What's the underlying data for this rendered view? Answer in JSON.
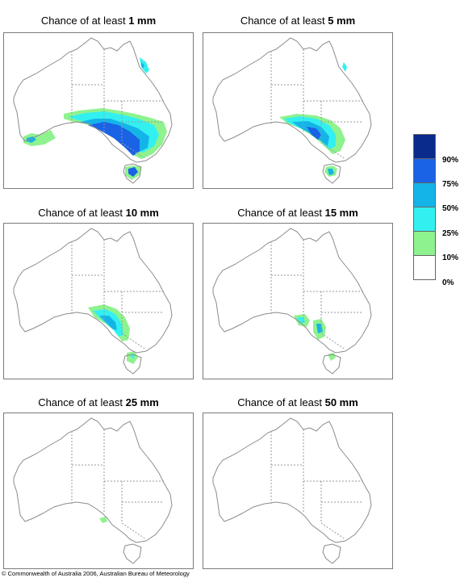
{
  "panels": [
    {
      "prefix": "Chance of at least ",
      "amount": "1 mm"
    },
    {
      "prefix": "Chance of at least ",
      "amount": "5 mm"
    },
    {
      "prefix": "Chance of at least ",
      "amount": "10 mm"
    },
    {
      "prefix": "Chance of at least ",
      "amount": "15 mm"
    },
    {
      "prefix": "Chance of at least ",
      "amount": "25 mm"
    },
    {
      "prefix": "Chance of at least ",
      "amount": "50 mm"
    }
  ],
  "legend": {
    "labels": [
      "90%",
      "75%",
      "50%",
      "25%",
      "10%",
      "0%"
    ],
    "colors": [
      "#0a2a8c",
      "#1a62e6",
      "#14b4e8",
      "#33f0f0",
      "#8ef28e",
      "#ffffff"
    ]
  },
  "credit": "© Commonwealth of Australia 2006, Australian Bureau of Meteorology"
}
